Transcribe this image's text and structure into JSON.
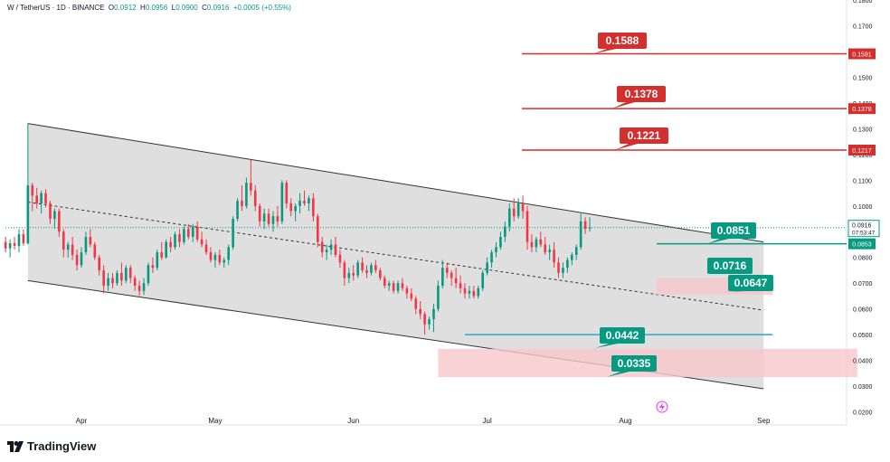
{
  "header": {
    "symbol": "W / TetherUS · 1D · BINANCE",
    "o_label": "O",
    "o": "0.0912",
    "h_label": "H",
    "h": "0.0956",
    "l_label": "L",
    "l": "0.0900",
    "c_label": "C",
    "c": "0.0916",
    "change": "+0.0005 (+0.55%)"
  },
  "brand": {
    "name": "TradingView"
  },
  "colors": {
    "up": "#089981",
    "down": "#f23645",
    "resistance": "#d32f2f",
    "support_label": "#089981",
    "support_line": "#089981",
    "channel_fill": "#d9d9d9",
    "zone_fill": "#f8c7cb",
    "cyan_line": "#2aa8c8"
  },
  "chart_data": {
    "type": "candlestick",
    "symbol": "W / TetherUS",
    "timeframe": "1D",
    "exchange": "BINANCE",
    "x_ticks": [
      "Apr",
      "May",
      "Jun",
      "Jul",
      "Aug",
      "Sep"
    ],
    "x_tick_dates": [
      "2024-04-01",
      "2024-05-01",
      "2024-06-01",
      "2024-07-01",
      "2024-08-01",
      "2024-09-01"
    ],
    "ylim": [
      0.0195,
      0.18
    ],
    "y_ticks": [
      "0.1800",
      "0.1700",
      "0.1600",
      "0.1500",
      "0.1400",
      "0.1300",
      "0.1200",
      "0.1100",
      "0.1000",
      "0.0900",
      "0.0800",
      "0.0700",
      "0.0600",
      "0.0500",
      "0.0400",
      "0.0300",
      "0.0200"
    ],
    "last_price": "0.0916",
    "countdown": "07:53:47",
    "price_axis_tags": [
      {
        "value": "0.1591",
        "color": "#d32f2f"
      },
      {
        "value": "0.1378",
        "color": "#d32f2f"
      },
      {
        "value": "0.1217",
        "color": "#d32f2f"
      },
      {
        "value": "0.0853",
        "color": "#089981"
      }
    ],
    "resistance_levels": [
      {
        "label": "0.1588",
        "y": 0.1591
      },
      {
        "label": "0.1378",
        "y": 0.1378
      },
      {
        "label": "0.1221",
        "y": 0.1217
      }
    ],
    "support_labels": [
      {
        "label": "0.0851",
        "y": 0.0853
      },
      {
        "label": "0.0716",
        "y": 0.0716
      },
      {
        "label": "0.0647",
        "y": 0.0647
      },
      {
        "label": "0.0442",
        "y": 0.05
      },
      {
        "label": "0.0335",
        "y": 0.0335
      }
    ],
    "channel": {
      "start_date": "2024-03-20",
      "end_date": "2024-09-01",
      "upper": [
        0.132,
        0.086
      ],
      "mid": [
        0.1015,
        0.0595
      ],
      "lower": [
        0.071,
        0.029
      ]
    },
    "zones": [
      {
        "from": "2024-08-08",
        "to": "2024-09-03",
        "low": 0.0655,
        "high": 0.072
      },
      {
        "from": "2024-06-20",
        "to": "2024-09-22",
        "low": 0.0335,
        "high": 0.0445
      }
    ],
    "cyan_level": {
      "from": "2024-06-26",
      "to": "2024-09-01",
      "y": 0.05
    },
    "ohlc_start_date": "2024-03-10",
    "ohlc": [
      [
        0.086,
        0.0905,
        0.0825,
        0.088
      ],
      [
        0.088,
        0.09,
        0.084,
        0.0855
      ],
      [
        0.0855,
        0.089,
        0.082,
        0.087
      ],
      [
        0.087,
        0.0895,
        0.083,
        0.0845
      ],
      [
        0.0845,
        0.088,
        0.081,
        0.086
      ],
      [
        0.086,
        0.088,
        0.082,
        0.0835
      ],
      [
        0.0835,
        0.087,
        0.08,
        0.0855
      ],
      [
        0.0855,
        0.088,
        0.083,
        0.0845
      ],
      [
        0.0845,
        0.091,
        0.082,
        0.089
      ],
      [
        0.089,
        0.091,
        0.0845,
        0.0855
      ],
      [
        0.0855,
        0.132,
        0.085,
        0.108
      ],
      [
        0.108,
        0.109,
        0.098,
        0.104
      ],
      [
        0.104,
        0.107,
        0.099,
        0.101
      ],
      [
        0.101,
        0.106,
        0.097,
        0.105
      ],
      [
        0.105,
        0.1065,
        0.0995,
        0.101
      ],
      [
        0.101,
        0.102,
        0.093,
        0.095
      ],
      [
        0.095,
        0.099,
        0.091,
        0.098
      ],
      [
        0.098,
        0.099,
        0.088,
        0.09
      ],
      [
        0.09,
        0.091,
        0.08,
        0.083
      ],
      [
        0.083,
        0.086,
        0.08,
        0.085
      ],
      [
        0.085,
        0.088,
        0.079,
        0.081
      ],
      [
        0.081,
        0.083,
        0.075,
        0.077
      ],
      [
        0.077,
        0.084,
        0.076,
        0.082
      ],
      [
        0.082,
        0.09,
        0.081,
        0.088
      ],
      [
        0.088,
        0.091,
        0.084,
        0.085
      ],
      [
        0.085,
        0.086,
        0.079,
        0.08
      ],
      [
        0.08,
        0.081,
        0.073,
        0.075
      ],
      [
        0.075,
        0.077,
        0.066,
        0.069
      ],
      [
        0.069,
        0.074,
        0.067,
        0.072
      ],
      [
        0.072,
        0.074,
        0.068,
        0.07
      ],
      [
        0.07,
        0.075,
        0.069,
        0.074
      ],
      [
        0.074,
        0.078,
        0.069,
        0.071
      ],
      [
        0.071,
        0.077,
        0.07,
        0.076
      ],
      [
        0.076,
        0.077,
        0.07,
        0.072
      ],
      [
        0.072,
        0.073,
        0.067,
        0.069
      ],
      [
        0.069,
        0.071,
        0.065,
        0.067
      ],
      [
        0.067,
        0.072,
        0.0655,
        0.07
      ],
      [
        0.07,
        0.078,
        0.069,
        0.077
      ],
      [
        0.077,
        0.08,
        0.074,
        0.076
      ],
      [
        0.076,
        0.083,
        0.075,
        0.082
      ],
      [
        0.082,
        0.086,
        0.079,
        0.08
      ],
      [
        0.08,
        0.087,
        0.0795,
        0.086
      ],
      [
        0.086,
        0.088,
        0.082,
        0.084
      ],
      [
        0.084,
        0.09,
        0.083,
        0.089
      ],
      [
        0.089,
        0.091,
        0.084,
        0.086
      ],
      [
        0.086,
        0.092,
        0.085,
        0.091
      ],
      [
        0.091,
        0.093,
        0.087,
        0.088
      ],
      [
        0.088,
        0.093,
        0.086,
        0.092
      ],
      [
        0.092,
        0.094,
        0.086,
        0.087
      ],
      [
        0.087,
        0.09,
        0.084,
        0.085
      ],
      [
        0.085,
        0.087,
        0.081,
        0.082
      ],
      [
        0.082,
        0.084,
        0.078,
        0.079
      ],
      [
        0.079,
        0.082,
        0.076,
        0.081
      ],
      [
        0.081,
        0.083,
        0.077,
        0.078
      ],
      [
        0.078,
        0.08,
        0.076,
        0.079
      ],
      [
        0.079,
        0.085,
        0.077,
        0.084
      ],
      [
        0.084,
        0.096,
        0.083,
        0.095
      ],
      [
        0.095,
        0.103,
        0.094,
        0.102
      ],
      [
        0.102,
        0.108,
        0.098,
        0.1
      ],
      [
        0.1,
        0.111,
        0.099,
        0.109
      ],
      [
        0.109,
        0.118,
        0.104,
        0.106
      ],
      [
        0.106,
        0.108,
        0.098,
        0.1
      ],
      [
        0.1,
        0.101,
        0.092,
        0.094
      ],
      [
        0.094,
        0.099,
        0.091,
        0.097
      ],
      [
        0.097,
        0.099,
        0.092,
        0.093
      ],
      [
        0.093,
        0.098,
        0.09,
        0.096
      ],
      [
        0.096,
        0.1,
        0.092,
        0.094
      ],
      [
        0.094,
        0.11,
        0.093,
        0.109
      ],
      [
        0.109,
        0.11,
        0.099,
        0.101
      ],
      [
        0.101,
        0.103,
        0.096,
        0.098
      ],
      [
        0.098,
        0.101,
        0.094,
        0.1
      ],
      [
        0.1,
        0.105,
        0.097,
        0.102
      ],
      [
        0.102,
        0.106,
        0.1,
        0.101
      ],
      [
        0.101,
        0.104,
        0.098,
        0.103
      ],
      [
        0.103,
        0.105,
        0.094,
        0.096
      ],
      [
        0.096,
        0.097,
        0.084,
        0.086
      ],
      [
        0.086,
        0.088,
        0.08,
        0.082
      ],
      [
        0.082,
        0.085,
        0.079,
        0.083
      ],
      [
        0.083,
        0.087,
        0.081,
        0.085
      ],
      [
        0.085,
        0.088,
        0.08,
        0.081
      ],
      [
        0.081,
        0.083,
        0.076,
        0.078
      ],
      [
        0.078,
        0.079,
        0.069,
        0.072
      ],
      [
        0.072,
        0.076,
        0.07,
        0.074
      ],
      [
        0.074,
        0.077,
        0.071,
        0.073
      ],
      [
        0.073,
        0.079,
        0.072,
        0.078
      ],
      [
        0.078,
        0.08,
        0.074,
        0.075
      ],
      [
        0.075,
        0.077,
        0.072,
        0.074
      ],
      [
        0.074,
        0.078,
        0.073,
        0.077
      ],
      [
        0.077,
        0.079,
        0.074,
        0.075
      ],
      [
        0.075,
        0.076,
        0.071,
        0.072
      ],
      [
        0.072,
        0.073,
        0.068,
        0.069
      ],
      [
        0.069,
        0.071,
        0.067,
        0.07
      ],
      [
        0.07,
        0.071,
        0.066,
        0.067
      ],
      [
        0.067,
        0.071,
        0.066,
        0.07
      ],
      [
        0.07,
        0.072,
        0.067,
        0.068
      ],
      [
        0.068,
        0.069,
        0.064,
        0.066
      ],
      [
        0.066,
        0.068,
        0.063,
        0.064
      ],
      [
        0.064,
        0.065,
        0.058,
        0.06
      ],
      [
        0.06,
        0.063,
        0.056,
        0.058
      ],
      [
        0.058,
        0.059,
        0.05,
        0.054
      ],
      [
        0.054,
        0.057,
        0.052,
        0.056
      ],
      [
        0.056,
        0.062,
        0.051,
        0.06
      ],
      [
        0.06,
        0.071,
        0.059,
        0.069
      ],
      [
        0.069,
        0.079,
        0.068,
        0.076
      ],
      [
        0.076,
        0.078,
        0.072,
        0.074
      ],
      [
        0.074,
        0.075,
        0.069,
        0.072
      ],
      [
        0.072,
        0.076,
        0.068,
        0.07
      ],
      [
        0.07,
        0.073,
        0.066,
        0.068
      ],
      [
        0.068,
        0.07,
        0.064,
        0.066
      ],
      [
        0.066,
        0.069,
        0.064,
        0.067
      ],
      [
        0.067,
        0.069,
        0.064,
        0.065
      ],
      [
        0.065,
        0.069,
        0.064,
        0.068
      ],
      [
        0.068,
        0.075,
        0.067,
        0.074
      ],
      [
        0.074,
        0.08,
        0.073,
        0.078
      ],
      [
        0.078,
        0.083,
        0.076,
        0.082
      ],
      [
        0.082,
        0.086,
        0.08,
        0.084
      ],
      [
        0.084,
        0.09,
        0.083,
        0.088
      ],
      [
        0.088,
        0.094,
        0.086,
        0.092
      ],
      [
        0.092,
        0.101,
        0.09,
        0.099
      ],
      [
        0.099,
        0.103,
        0.094,
        0.096
      ],
      [
        0.096,
        0.103,
        0.095,
        0.101
      ],
      [
        0.101,
        0.104,
        0.095,
        0.098
      ],
      [
        0.098,
        0.1,
        0.083,
        0.086
      ],
      [
        0.086,
        0.089,
        0.082,
        0.084
      ],
      [
        0.084,
        0.088,
        0.082,
        0.087
      ],
      [
        0.087,
        0.09,
        0.084,
        0.085
      ],
      [
        0.085,
        0.088,
        0.081,
        0.082
      ],
      [
        0.082,
        0.085,
        0.079,
        0.083
      ],
      [
        0.083,
        0.086,
        0.076,
        0.078
      ],
      [
        0.078,
        0.08,
        0.072,
        0.074
      ],
      [
        0.074,
        0.078,
        0.072,
        0.076
      ],
      [
        0.076,
        0.08,
        0.074,
        0.079
      ],
      [
        0.079,
        0.082,
        0.077,
        0.081
      ],
      [
        0.081,
        0.085,
        0.079,
        0.084
      ],
      [
        0.084,
        0.097,
        0.083,
        0.094
      ],
      [
        0.094,
        0.0956,
        0.089,
        0.0911
      ],
      [
        0.0912,
        0.0956,
        0.09,
        0.0916
      ]
    ]
  },
  "footer_icon": "lightning-icon"
}
